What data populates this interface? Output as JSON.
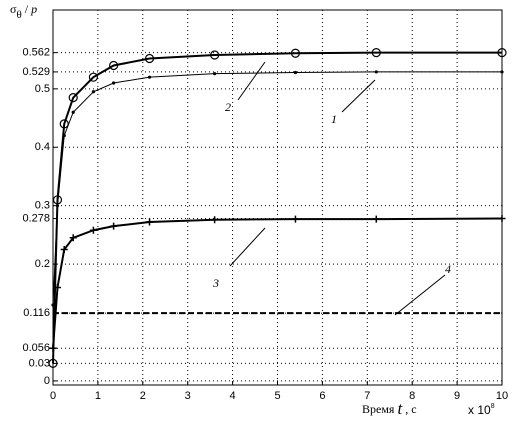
{
  "chart_data": {
    "type": "line",
    "y_label": [
      "σ",
      "θ",
      " / ",
      "p"
    ],
    "x_label": [
      "Время ",
      "t",
      " , с"
    ],
    "x_multiplier": [
      "x 10",
      "8"
    ],
    "xlim": [
      0,
      10
    ],
    "xticks": [
      0,
      1,
      2,
      3,
      4,
      5,
      6,
      7,
      8,
      9,
      10
    ],
    "ylim": [
      -0.007,
      0.635
    ],
    "yticks": [
      0,
      0.03,
      0.056,
      0.116,
      0.2,
      0.278,
      0.3,
      0.4,
      0.5,
      0.529,
      0.562
    ],
    "grid": true,
    "series": [
      {
        "name": "1",
        "color": "#000",
        "marker": "dot",
        "line_width": 1,
        "x": [
          0,
          0.1,
          0.25,
          0.45,
          0.9,
          1.35,
          2.15,
          3.6,
          5.4,
          7.2,
          10
        ],
        "values": [
          0.13,
          0.3,
          0.42,
          0.46,
          0.495,
          0.51,
          0.52,
          0.526,
          0.528,
          0.529,
          0.529
        ]
      },
      {
        "name": "2",
        "color": "#000",
        "marker": "circle",
        "line_width": 2,
        "x": [
          0,
          0.1,
          0.25,
          0.45,
          0.9,
          1.35,
          2.15,
          3.6,
          5.4,
          7.2,
          10
        ],
        "values": [
          0.03,
          0.31,
          0.44,
          0.485,
          0.52,
          0.54,
          0.552,
          0.558,
          0.561,
          0.562,
          0.562
        ]
      },
      {
        "name": "3",
        "color": "#000",
        "marker": "plus",
        "line_width": 2,
        "x": [
          0,
          0.1,
          0.25,
          0.45,
          0.9,
          1.35,
          2.15,
          3.6,
          5.4,
          7.2,
          10
        ],
        "values": [
          0.056,
          0.16,
          0.225,
          0.245,
          0.258,
          0.265,
          0.272,
          0.276,
          0.277,
          0.277,
          0.278
        ]
      },
      {
        "name": "4",
        "color": "#000",
        "marker": "none",
        "line_width": 2,
        "dashed": true,
        "x": [
          0,
          10
        ],
        "values": [
          0.116,
          0.116
        ]
      }
    ]
  }
}
